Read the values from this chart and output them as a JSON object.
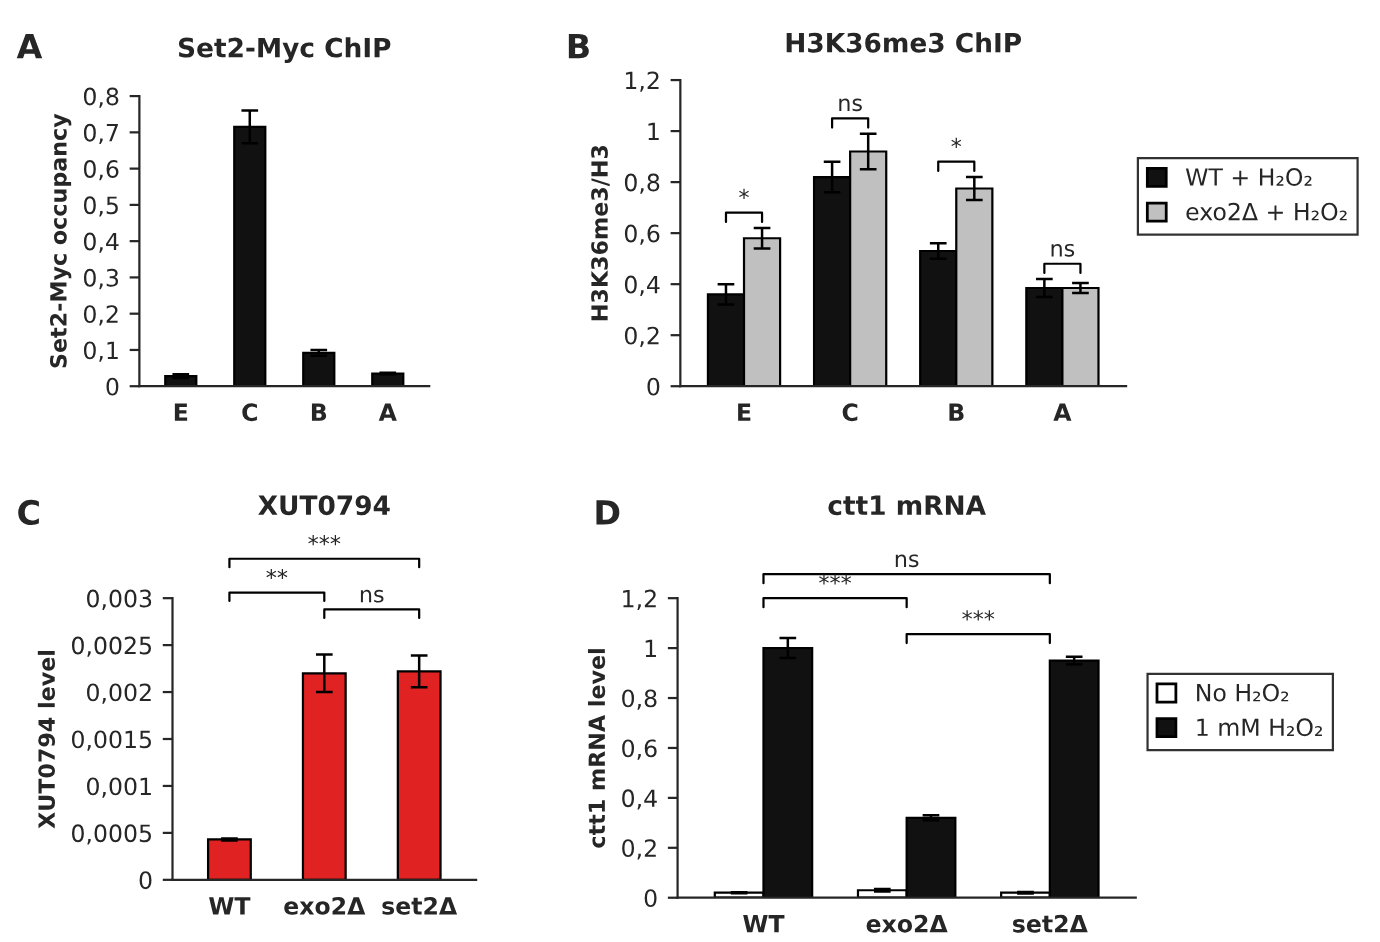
{
  "chart_data": [
    {
      "type": "bar",
      "title": "Set2-Myc ChIP",
      "ylabel": "Set2-Myc occupancy",
      "categories": [
        "E",
        "C",
        "B",
        "A"
      ],
      "values": [
        0.028,
        0.715,
        0.092,
        0.035
      ],
      "errors": [
        0.005,
        0.045,
        0.008,
        0.002
      ],
      "color": "#111111",
      "ylim": [
        0,
        0.8
      ],
      "yticks": [
        0,
        {
          "value": 0.1,
          "label": "0,1"
        },
        {
          "value": 0.2,
          "label": "0,2"
        },
        {
          "value": 0.3,
          "label": "0,3"
        },
        {
          "value": 0.4,
          "label": "0,4"
        },
        {
          "value": 0.5,
          "label": "0,5"
        },
        {
          "value": 0.6,
          "label": "0,6"
        },
        {
          "value": 0.7,
          "label": "0,7"
        },
        {
          "value": 0.8,
          "label": "0,8"
        }
      ],
      "annotations": [
        "A"
      ],
      "grid": false,
      "legend": false
    },
    {
      "type": "bar",
      "title": "H3K36me3 ChIP",
      "ylabel": "H3K36me3/H3",
      "categories": [
        "E",
        "C",
        "B",
        "A"
      ],
      "series": [
        {
          "name": "WT + H₂O₂",
          "color": "#111111",
          "values": [
            0.36,
            0.82,
            0.53,
            0.385
          ],
          "errors": [
            0.04,
            0.06,
            0.03,
            0.035
          ]
        },
        {
          "name": "exo2Δ + H₂O₂",
          "color": "#c0c0c0",
          "values": [
            0.58,
            0.92,
            0.775,
            0.385
          ],
          "errors": [
            0.04,
            0.07,
            0.045,
            0.02
          ]
        }
      ],
      "ylim": [
        0,
        1.2
      ],
      "yticks": [
        0,
        {
          "value": 0.2,
          "label": "0,2"
        },
        {
          "value": 0.4,
          "label": "0,4"
        },
        {
          "value": 0.6,
          "label": "0,6"
        },
        {
          "value": 0.8,
          "label": "0,8"
        },
        1,
        {
          "value": 1.2,
          "label": "1,2"
        }
      ],
      "annotations": [
        "B",
        {
          "text": "*",
          "x": "E",
          "y": 0.58
        },
        {
          "text": "ns",
          "x": "C",
          "y": 0.92
        },
        {
          "text": "*",
          "x": "B",
          "y": 0.775
        },
        {
          "text": "ns",
          "x": "A",
          "y": 0.385
        }
      ],
      "grid": false,
      "legend": "right"
    },
    {
      "type": "bar",
      "title": "XUT0794",
      "ylabel": "XUT0794 level",
      "categories": [
        "WT",
        "exo2Δ",
        "set2Δ"
      ],
      "values": [
        0.00043,
        0.0022,
        0.00222
      ],
      "errors": [
        1e-05,
        0.0002,
        0.00017
      ],
      "color": "#e02222",
      "ylim": [
        0,
        0.003
      ],
      "yticks": [
        0,
        {
          "value": 0.0005,
          "label": "0,0005"
        },
        {
          "value": 0.001,
          "label": "0,001"
        },
        {
          "value": 0.0015,
          "label": "0,0015"
        },
        {
          "value": 0.002,
          "label": "0,002"
        },
        {
          "value": 0.0025,
          "label": "0,0025"
        },
        {
          "value": 0.003,
          "label": "0,003"
        }
      ],
      "annotations": [
        "C",
        "***",
        "**",
        "ns"
      ],
      "grid": false,
      "legend": false
    },
    {
      "type": "bar",
      "title": "ctt1 mRNA",
      "ylabel": "ctt1 mRNA level",
      "categories": [
        "WT",
        "exo2Δ",
        "set2Δ"
      ],
      "series": [
        {
          "name": "No H₂O₂",
          "color": "#ffffff",
          "values": [
            0.02,
            0.03,
            0.02
          ],
          "errors": [
            0.002,
            0.005,
            0.003
          ]
        },
        {
          "name": "1 mM H₂O₂",
          "color": "#111111",
          "values": [
            1.0,
            0.32,
            0.95
          ],
          "errors": [
            0.04,
            0.01,
            0.015
          ]
        }
      ],
      "ylim": [
        0,
        1.2
      ],
      "yticks": [
        0,
        {
          "value": 0.2,
          "label": "0,2"
        },
        {
          "value": 0.4,
          "label": "0,4"
        },
        {
          "value": 0.6,
          "label": "0,6"
        },
        {
          "value": 0.8,
          "label": "0,8"
        },
        1,
        {
          "value": 1.2,
          "label": "1,2"
        }
      ],
      "annotations": [
        "D",
        "ns",
        "***",
        "***"
      ],
      "grid": false,
      "legend": "right"
    }
  ]
}
